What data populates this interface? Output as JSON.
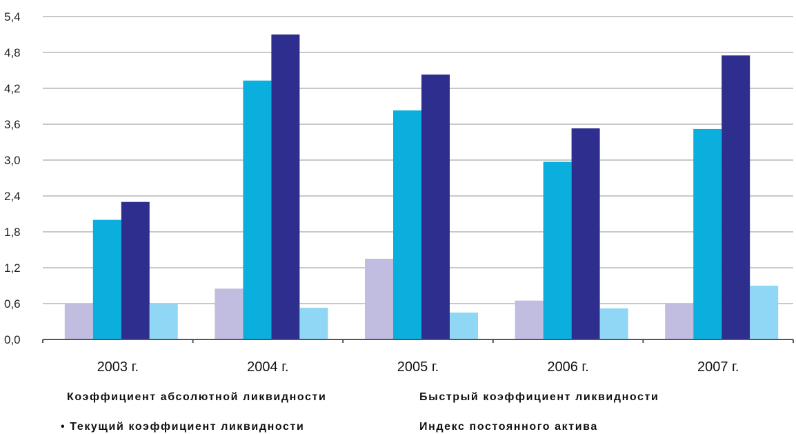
{
  "chart_data": {
    "type": "bar",
    "title": "",
    "xlabel": "",
    "ylabel": "",
    "categories": [
      "2003 г.",
      "2004 г.",
      "2005 г.",
      "2006 г.",
      "2007 г."
    ],
    "yticks": [
      "0,0",
      "0,6",
      "1,2",
      "1,8",
      "2,4",
      "3,0",
      "3,6",
      "4,2",
      "4,8",
      "5,4"
    ],
    "ylim": [
      0,
      5.4
    ],
    "grid": true,
    "legend_placement": "bottom",
    "series": [
      {
        "name": "Коэффициент абсолютной ликвидности",
        "color": "#c0bde0",
        "values": [
          0.59,
          0.85,
          1.35,
          0.65,
          0.6
        ]
      },
      {
        "name": "Быстрый коэффициент ликвидности",
        "color": "#0aafde",
        "values": [
          2.0,
          4.33,
          3.83,
          2.97,
          3.52
        ]
      },
      {
        "name": "Текущий коэффициент ликвидности",
        "color": "#2e2e8e",
        "values": [
          2.3,
          5.1,
          4.43,
          3.53,
          4.75
        ]
      },
      {
        "name": "Индекс постоянного актива",
        "color": "#8fd7f5",
        "values": [
          0.59,
          0.53,
          0.45,
          0.52,
          0.9
        ]
      }
    ]
  },
  "legend": {
    "item1": "Коэффициент абсолютной ликвидности",
    "item2": "Быстрый коэффициент ликвидности",
    "item3": "• Текущий коэффициент ликвидности",
    "item4": "Индекс постоянного актива"
  }
}
